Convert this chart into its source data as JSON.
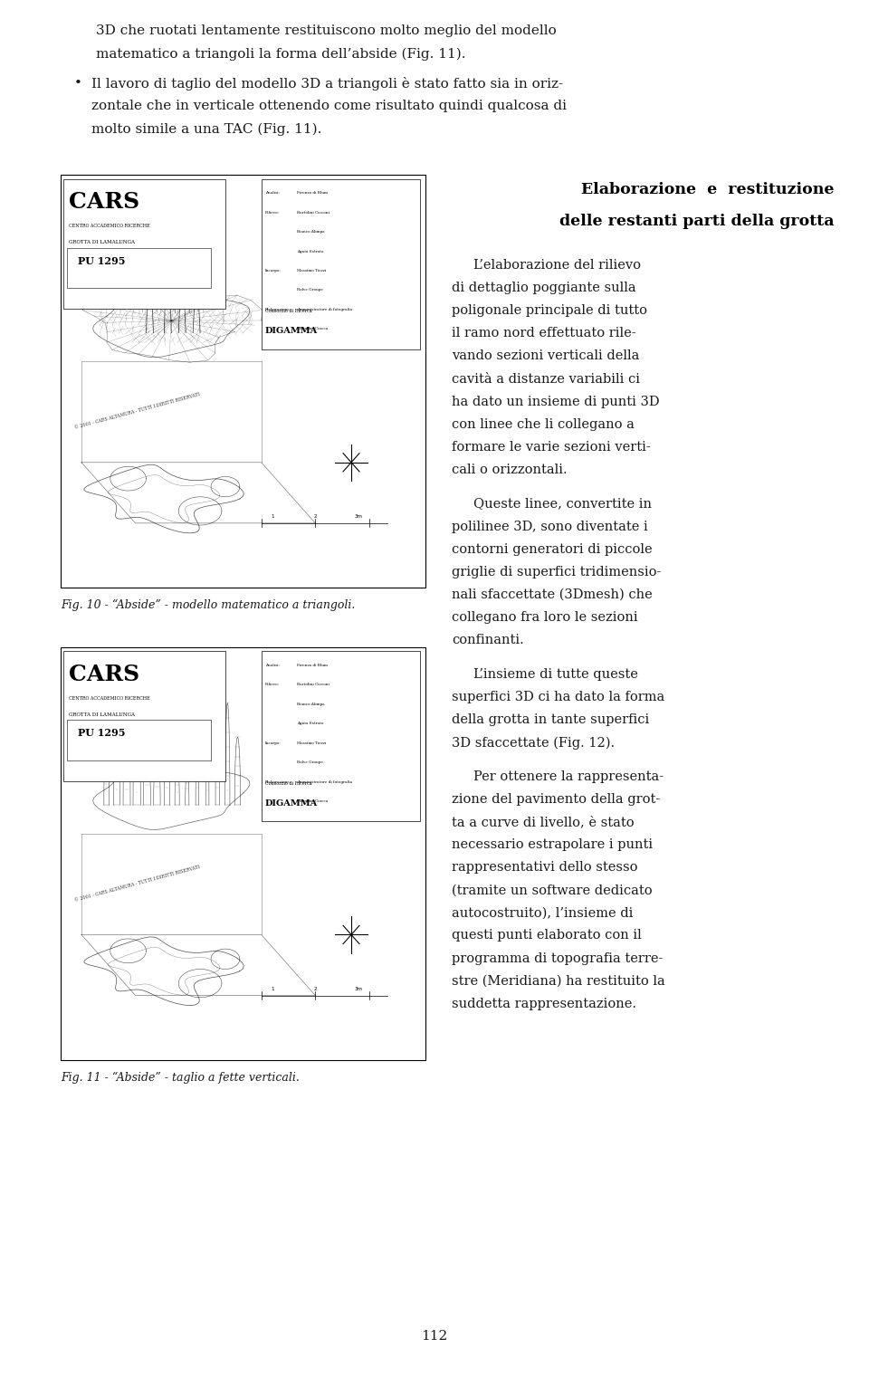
{
  "bg_color": "#ffffff",
  "page_width": 9.6,
  "page_height": 15.21,
  "top_text_lines": [
    "3D che ruotati lentamente restituiscono molto meglio del modello",
    "matematico a triangoli la forma dell’abside (Fig. 11)."
  ],
  "bullet_lines": [
    "Il lavoro di taglio del modello 3D a triangoli è stato fatto sia in oriz-",
    "zontale che in verticale ottenendo come risultato quindi qualcosa di",
    "molto simile a una TAC (Fig. 11)."
  ],
  "right_heading1": "Elaborazione  e  restituzione",
  "right_heading2": "delle restanti parti della grotta",
  "right_para1": [
    "L’elaborazione del rilievo",
    "di dettaglio poggiante sulla",
    "poligonale principale di tutto",
    "il ramo nord effettuato rile-",
    "vando sezioni verticali della",
    "cavità a distanze variabili ci",
    "ha dato un insieme di punti 3D",
    "con linee che li collegano a",
    "formare le varie sezioni verti-",
    "cali o orizzontali."
  ],
  "right_para2": [
    "Queste linee, convertite in",
    "polilinee 3D, sono diventate i",
    "contorni generatori di piccole",
    "griglie di superfici tridimensio-",
    "nali sfaccettate (3Dmesh) che",
    "collegano fra loro le sezioni",
    "confinanti."
  ],
  "right_para3": [
    "L’insieme di tutte queste",
    "superfici 3D ci ha dato la forma",
    "della grotta in tante superfici",
    "3D sfaccettate (Fig. 12)."
  ],
  "right_para4": [
    "Per ottenere la rappresenta-",
    "zione del pavimento della grot-",
    "ta a curve di livello, è stato",
    "necessario estrapolare i punti",
    "rappresentativi dello stesso",
    "(tramite un software dedicato",
    "autocostruito), l’insieme di",
    "questi punti elaborato con il",
    "programma di topografia terre-",
    "stre (Meridiana) ha restituito la",
    "suddetta rappresentazione."
  ],
  "fig10_caption": "Fig. 10 - “Abside” - modello matematico a triangoli.",
  "fig11_caption": "Fig. 11 - “Abside” - taglio a fette verticali.",
  "page_number": "112",
  "text_color": "#1a1a1a",
  "heading_color": "#000000",
  "font_size_body": 10.5,
  "font_size_caption": 9.0,
  "font_size_heading": 12.5,
  "font_size_top": 11.0,
  "font_size_page_num": 11.0
}
